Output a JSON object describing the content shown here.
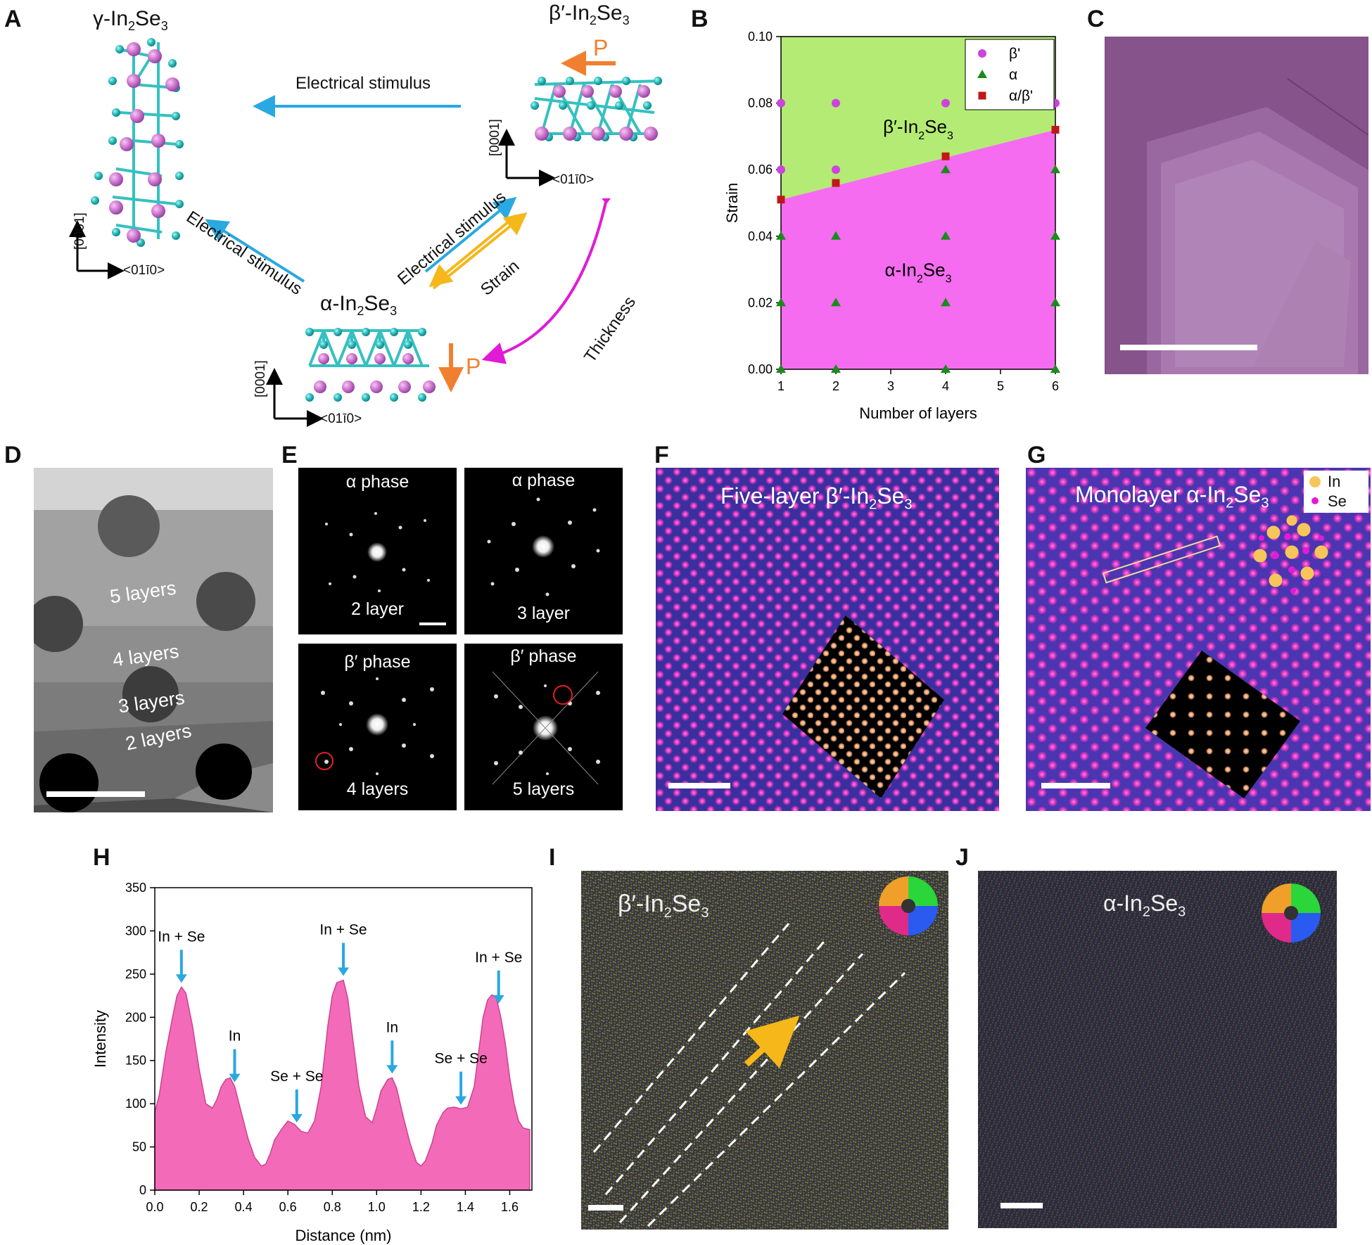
{
  "panels": {
    "A": "A",
    "B": "B",
    "C": "C",
    "D": "D",
    "E": "E",
    "F": "F",
    "G": "G",
    "H": "H",
    "I": "I",
    "J": "J"
  },
  "panelA": {
    "gamma_prefix": "γ-In",
    "beta_prefix": "β′-In",
    "alpha_prefix": "α-In",
    "sub2": "2",
    "sub3": "3",
    "electrical": "Electrical stimulus",
    "strain": "Strain",
    "thickness": "Thickness",
    "p": "P",
    "axis_vert": "[0001]",
    "axis_horiz": "<01ī0>"
  },
  "chart_data": {
    "type": "scatter",
    "xlabel": "Number of layers",
    "ylabel": "Strain",
    "xlim": [
      1,
      6
    ],
    "ylim": [
      0,
      0.1
    ],
    "xticks": [
      "1",
      "2",
      "3",
      "4",
      "5",
      "6"
    ],
    "yticks": [
      "0.00",
      "0.02",
      "0.04",
      "0.06",
      "0.08",
      "0.10"
    ],
    "boundary": {
      "x": [
        1,
        6
      ],
      "y": [
        0.051,
        0.072
      ]
    },
    "region_labels": {
      "beta": "β′-In",
      "alpha": "α-In",
      "sub2": "2",
      "sub3": "3"
    },
    "colors": {
      "beta_region": "#b4eb74",
      "alpha_region": "#f56cf0",
      "beta": "#cc44dd",
      "alpha": "#1a8a1a",
      "mixed": "#c01818"
    },
    "legend": [
      "β'",
      "α",
      "α/β'"
    ],
    "series": [
      {
        "name": "β'",
        "marker": "circle",
        "x": [
          1,
          1,
          2,
          2,
          4,
          6
        ],
        "y": [
          0.08,
          0.06,
          0.08,
          0.06,
          0.08,
          0.08
        ]
      },
      {
        "name": "α",
        "marker": "triangle",
        "x": [
          1,
          1,
          1,
          2,
          2,
          2,
          4,
          4,
          4,
          4,
          6,
          6,
          6,
          6
        ],
        "y": [
          0.04,
          0.02,
          0.0,
          0.04,
          0.02,
          0.0,
          0.06,
          0.04,
          0.02,
          0.0,
          0.06,
          0.04,
          0.02,
          0.0
        ]
      },
      {
        "name": "α/β'",
        "marker": "square",
        "x": [
          1,
          2,
          4,
          6
        ],
        "y": [
          0.051,
          0.056,
          0.064,
          0.072
        ]
      }
    ]
  },
  "panelD": {
    "labels": [
      "5 layers",
      "4 layers",
      "3 layers",
      "2 layers"
    ]
  },
  "panelE": {
    "top_left": {
      "phase": "α phase",
      "layers": "2 layer"
    },
    "top_right": {
      "phase": "α phase",
      "layers": "3 layer"
    },
    "bottom_left": {
      "phase": "β′ phase",
      "layers": "4 layers"
    },
    "bottom_right": {
      "phase": "β′ phase",
      "layers": "5 layers"
    }
  },
  "panelF": {
    "title_prefix": "Five-layer β′-In",
    "sub2": "2",
    "sub3": "3"
  },
  "panelG": {
    "title_prefix": "Monolayer α-In",
    "sub2": "2",
    "sub3": "3",
    "legend_in": "In",
    "legend_se": "Se"
  },
  "chart_data_h": {
    "type": "area",
    "xlabel": "Distance (nm)",
    "ylabel": "Intensity",
    "xlim": [
      0,
      1.7
    ],
    "ylim": [
      0,
      350
    ],
    "xticks": [
      "0.0",
      "0.2",
      "0.4",
      "0.6",
      "0.8",
      "1.0",
      "1.2",
      "1.4",
      "1.6"
    ],
    "yticks": [
      "0",
      "50",
      "100",
      "150",
      "200",
      "250",
      "300",
      "350"
    ],
    "x": [
      0,
      0.02,
      0.05,
      0.08,
      0.1,
      0.12,
      0.14,
      0.17,
      0.2,
      0.23,
      0.26,
      0.28,
      0.3,
      0.32,
      0.34,
      0.36,
      0.38,
      0.4,
      0.42,
      0.45,
      0.48,
      0.5,
      0.52,
      0.54,
      0.57,
      0.6,
      0.63,
      0.66,
      0.69,
      0.72,
      0.75,
      0.78,
      0.8,
      0.82,
      0.85,
      0.87,
      0.89,
      0.92,
      0.95,
      0.98,
      1.0,
      1.02,
      1.05,
      1.07,
      1.09,
      1.12,
      1.15,
      1.18,
      1.2,
      1.22,
      1.25,
      1.27,
      1.3,
      1.32,
      1.35,
      1.38,
      1.41,
      1.44,
      1.46,
      1.48,
      1.5,
      1.52,
      1.54,
      1.56,
      1.58,
      1.6,
      1.62,
      1.64,
      1.66,
      1.69
    ],
    "y": [
      90,
      110,
      160,
      200,
      225,
      235,
      228,
      190,
      140,
      100,
      95,
      105,
      120,
      128,
      130,
      120,
      100,
      80,
      60,
      38,
      28,
      30,
      42,
      58,
      70,
      80,
      76,
      68,
      66,
      80,
      120,
      190,
      225,
      240,
      243,
      222,
      180,
      120,
      85,
      78,
      95,
      115,
      128,
      130,
      118,
      85,
      55,
      32,
      28,
      34,
      55,
      75,
      90,
      95,
      96,
      94,
      96,
      120,
      160,
      200,
      220,
      226,
      222,
      200,
      170,
      130,
      100,
      80,
      72,
      70
    ],
    "color": "#f36bb8",
    "annotations": [
      {
        "label": "In + Se",
        "x": 0.12
      },
      {
        "label": "In",
        "x": 0.36
      },
      {
        "label": "Se + Se",
        "x": 0.64
      },
      {
        "label": "In + Se",
        "x": 0.85
      },
      {
        "label": "In",
        "x": 1.07
      },
      {
        "label": "Se + Se",
        "x": 1.38
      },
      {
        "label": "In + Se",
        "x": 1.55
      }
    ]
  },
  "panelI": {
    "title_prefix": "β′-In",
    "sub2": "2",
    "sub3": "3"
  },
  "panelJ": {
    "title_prefix": "α-In",
    "sub2": "2",
    "sub3": "3"
  }
}
